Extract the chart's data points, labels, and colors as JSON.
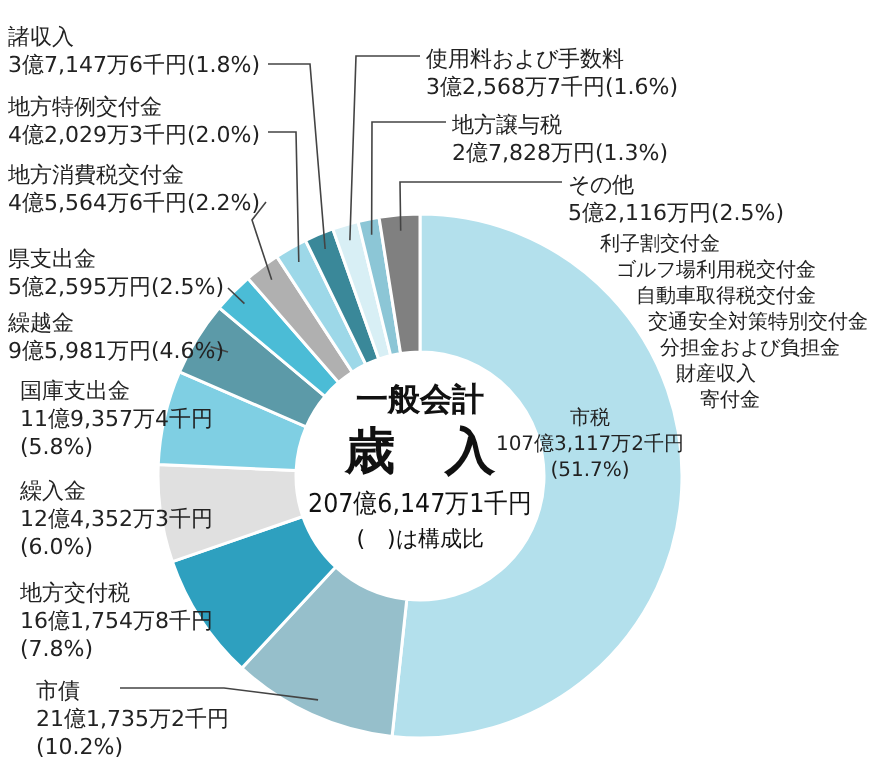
{
  "chart_data": {
    "type": "donut",
    "title": "一般会計",
    "subtitle": "歳　入",
    "categories": [
      "市税",
      "市債",
      "地方交付税",
      "繰入金",
      "国庫支出金",
      "繰越金",
      "県支出金",
      "地方消費税交付金",
      "地方特例交付金",
      "諸収入",
      "使用料および手数料",
      "地方譲与税",
      "その他"
    ],
    "values": [
      51.7,
      10.2,
      7.8,
      6.0,
      5.8,
      4.6,
      2.5,
      2.2,
      2.0,
      1.8,
      1.6,
      1.3,
      2.5
    ],
    "value_labels": [
      "107億3,117万2千円(51.7%)",
      "21億1,735万2千円(10.2%)",
      "16億1,754万8千円(7.8%)",
      "12億4,352万3千円(6.0%)",
      "11億9,357万4千円(5.8%)",
      "9億5,981万円(4.6%)",
      "5億2,595万円(2.5%)",
      "4億5,564万6千円(2.2%)",
      "4億2,029万3千円(2.0%)",
      "3億7,147万6千円(1.8%)",
      "3億2,568万7千円(1.6%)",
      "2億7,828万円(1.3%)",
      "5億2,116万円(2.5%)"
    ],
    "colors": [
      "#b3e0ec",
      "#96bfcb",
      "#2ea0bf",
      "#e0e0e0",
      "#7fcfe3",
      "#5c9aa8",
      "#4bbcd6",
      "#b0b0b0",
      "#9dd8e8",
      "#3a8899",
      "#d8eff5",
      "#8cc6d6",
      "#808080"
    ],
    "annotations": [
      "207億6,147万1千円",
      "(　)は構成比",
      "利子割交付金",
      "ゴルフ場利用税交付金",
      "自動車取得税交付金",
      "交通安全対策特別交付金",
      "分担金および負担金",
      "財産収入",
      "寄付金"
    ]
  }
}
